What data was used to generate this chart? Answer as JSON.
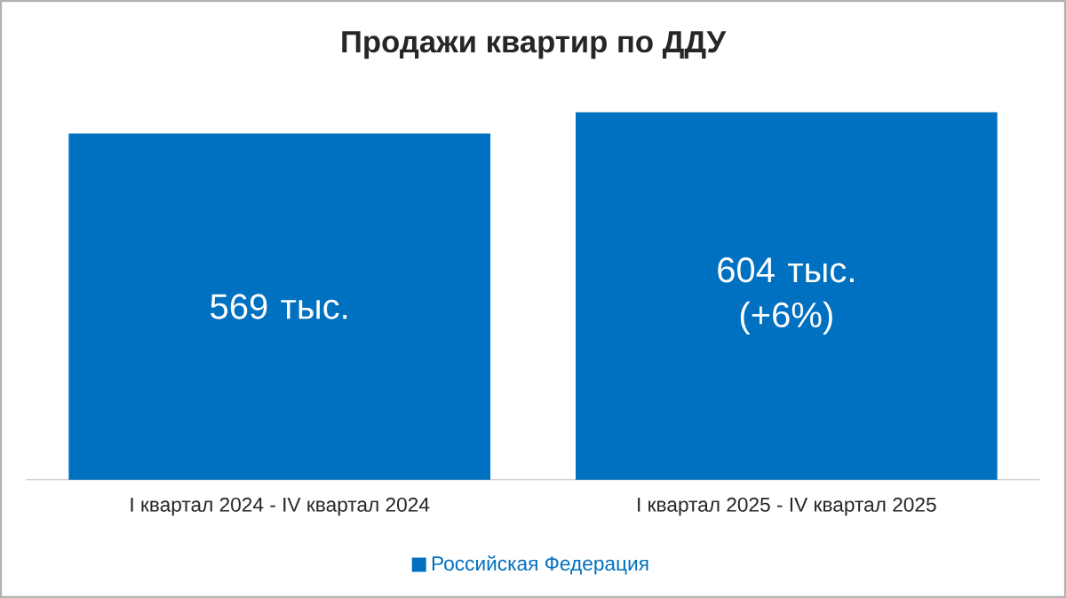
{
  "chart_data": {
    "type": "bar",
    "title": "Продажи квартир по ДДУ",
    "categories": [
      "I квартал 2024 - IV квартал 2024",
      "I квартал 2025 - IV квартал 2025"
    ],
    "series": [
      {
        "name": "Российская Федерация",
        "color": "#0070c0",
        "values": [
          569,
          604
        ],
        "value_labels": [
          "569 тыс.",
          "604 тыс. (+6%)"
        ]
      }
    ],
    "legend": "bottom"
  }
}
